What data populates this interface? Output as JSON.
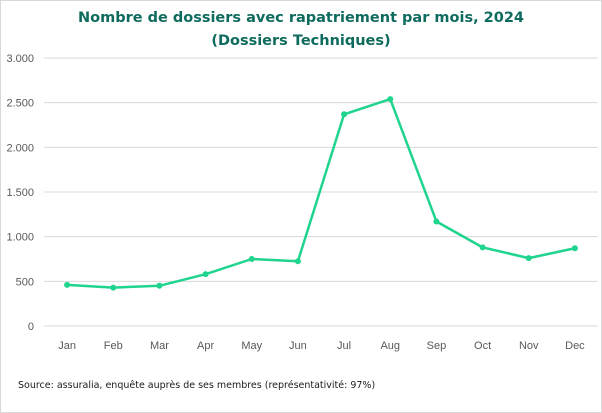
{
  "chart_data": {
    "type": "line",
    "title": "Nombre de dossiers avec rapatriement par mois, 2024",
    "subtitle": "(Dossiers Techniques)",
    "xlabel": "",
    "ylabel": "",
    "categories": [
      "Jan",
      "Feb",
      "Mar",
      "Apr",
      "May",
      "Jun",
      "Jul",
      "Aug",
      "Sep",
      "Oct",
      "Nov",
      "Dec"
    ],
    "series": [
      {
        "name": "Dossiers avec rapatriement",
        "values": [
          460,
          430,
          450,
          580,
          750,
          725,
          2370,
          2540,
          1170,
          880,
          760,
          870
        ],
        "color": "#1fd48c"
      }
    ],
    "ylim": [
      0,
      3000
    ],
    "yticks": [
      0,
      500,
      1000,
      1500,
      2000,
      2500,
      3000
    ],
    "ytick_labels": [
      "0",
      "500",
      "1.000",
      "1.500",
      "2.000",
      "2.500",
      "3.000"
    ],
    "grid": true,
    "legend": "none",
    "colors": {
      "title": "#0f6b5e",
      "grid": "#d9d9d9",
      "axis_text": "#595959"
    }
  },
  "footer": {
    "source": "Source: assuralia, enquête auprès de ses membres (représentativité: 97%)"
  }
}
